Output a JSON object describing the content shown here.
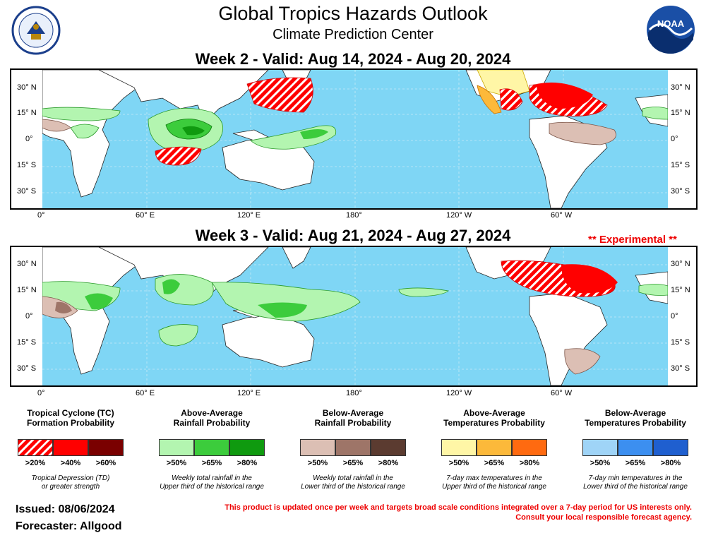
{
  "header": {
    "title": "Global Tropics Hazards Outlook",
    "subtitle": "Climate Prediction Center"
  },
  "maps": [
    {
      "title": "Week 2 - Valid: Aug 14, 2024 - Aug 20, 2024"
    },
    {
      "title": "Week 3 - Valid: Aug 21, 2024 - Aug 27, 2024",
      "tag": "** Experimental **"
    }
  ],
  "lat_labels": [
    "30° N",
    "15° N",
    "0°",
    "15° S",
    "30° S"
  ],
  "lon_labels": [
    "0°",
    "60° E",
    "120° E",
    "180°",
    "120° W",
    "60° W"
  ],
  "legend": [
    {
      "title_line1": "Tropical Cyclone (TC)",
      "title_line2": "Formation Probability",
      "levels": [
        ">20%",
        ">40%",
        ">60%"
      ],
      "colors": [
        "#ff0000",
        "#ff0000",
        "#7a0000"
      ],
      "note_line1": "Tropical Depression (TD)",
      "note_line2": "or greater strength"
    },
    {
      "title_line1": "Above-Average",
      "title_line2": "Rainfall Probability",
      "levels": [
        ">50%",
        ">65%",
        ">80%"
      ],
      "colors": [
        "#b3f5b0",
        "#3ccc3c",
        "#0f9a0f"
      ],
      "note_line1": "Weekly total rainfall in the",
      "note_line2": "Upper third of the historical range"
    },
    {
      "title_line1": "Below-Average",
      "title_line2": "Rainfall Probability",
      "levels": [
        ">50%",
        ">65%",
        ">80%"
      ],
      "colors": [
        "#dcbfb4",
        "#9e7568",
        "#5b3b30"
      ],
      "note_line1": "Weekly total rainfall in the",
      "note_line2": "Lower third of the historical range"
    },
    {
      "title_line1": "Above-Average",
      "title_line2": "Temperatures Probability",
      "levels": [
        ">50%",
        ">65%",
        ">80%"
      ],
      "colors": [
        "#fff6a6",
        "#fcb93a",
        "#ff6a10"
      ],
      "note_line1": "7-day max temperatures in the",
      "note_line2": "Upper third of the historical range"
    },
    {
      "title_line1": "Below-Average",
      "title_line2": "Temperatures Probability",
      "levels": [
        ">50%",
        ">65%",
        ">80%"
      ],
      "colors": [
        "#9fd4f7",
        "#3c8ff0",
        "#1f5fcf"
      ],
      "note_line1": "7-day min temperatures in the",
      "note_line2": "Lower third of the historical range"
    }
  ],
  "footer": {
    "issued": "Issued: 08/06/2024",
    "forecaster": "Forecaster: Allgood",
    "disclaimer_line1": "This product is updated once per week and targets broad scale conditions integrated over a 7-day period for US interests only.",
    "disclaimer_line2": "Consult your local responsible forecast agency."
  },
  "logos": {
    "noaa_text": "NOAA"
  },
  "colors": {
    "ocean": "#7fd6f5",
    "land": "#ffffff"
  }
}
